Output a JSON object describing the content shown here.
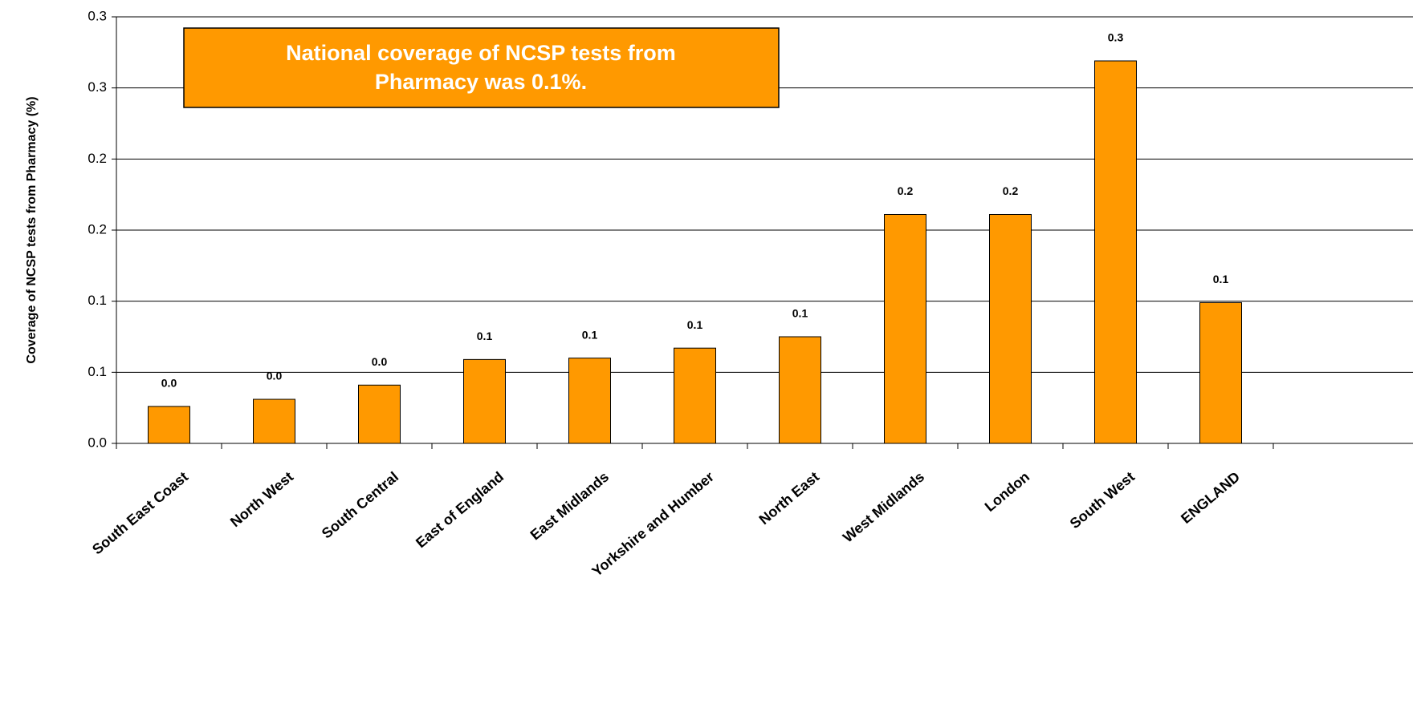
{
  "chart_data": {
    "type": "bar",
    "y_label": "Coverage of NCSP tests from Pharmacy (%)",
    "annotation": [
      "National coverage of NCSP tests from",
      "Pharmacy was 0.1%."
    ],
    "categories": [
      "South East Coast",
      "North West",
      "South Central",
      "East of England",
      "East Midlands",
      "Yorkshire and Humber",
      "North East",
      "West Midlands",
      "London",
      "South West",
      "ENGLAND"
    ],
    "values": [
      0.026,
      0.031,
      0.041,
      0.059,
      0.06,
      0.067,
      0.075,
      0.161,
      0.161,
      0.269,
      0.099
    ],
    "value_labels": [
      "0.0",
      "0.0",
      "0.0",
      "0.1",
      "0.1",
      "0.1",
      "0.1",
      "0.2",
      "0.2",
      "0.3",
      "0.1"
    ],
    "color": "#ff9900",
    "ylim": [
      0,
      0.3
    ],
    "yticks": [
      {
        "value": 0,
        "label": "0.0"
      },
      {
        "value": 0.05,
        "label": "0.1"
      },
      0.1,
      {
        "value": 0.15,
        "label": "0.2"
      },
      0.2,
      {
        "value": 0.25,
        "label": "0.3"
      },
      0.3
    ],
    "grid": true
  }
}
